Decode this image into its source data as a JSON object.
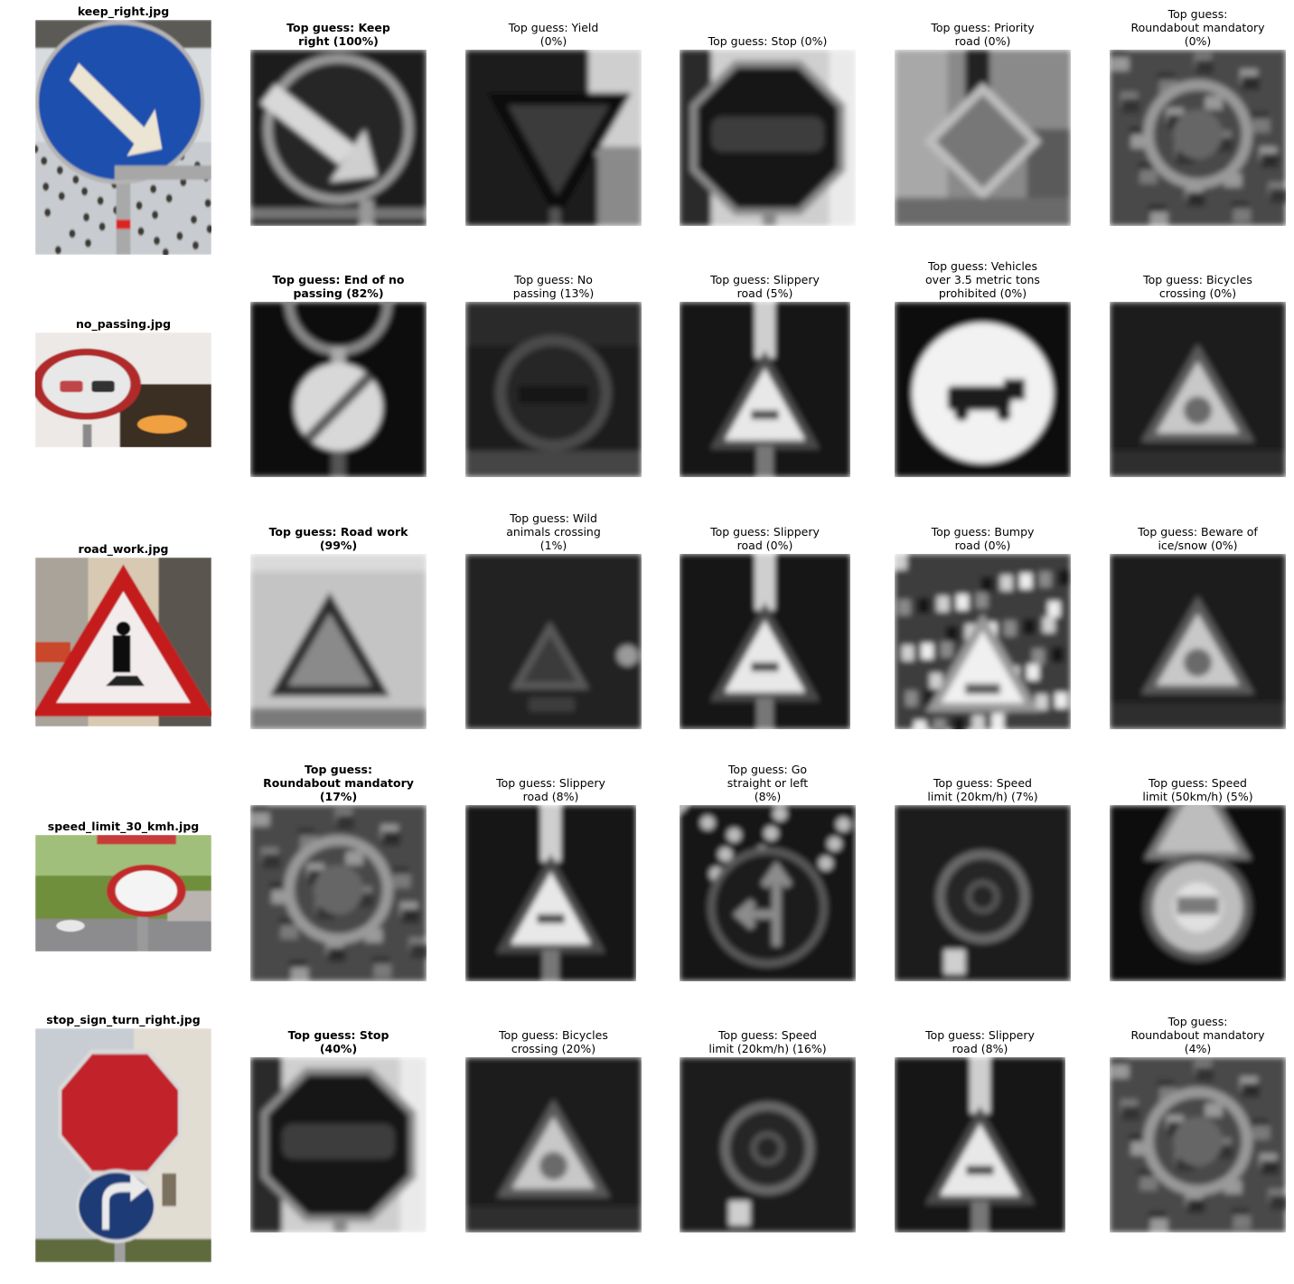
{
  "rows": [
    {
      "source": {
        "filename": "keep_right.jpg",
        "kind": "keep-right"
      },
      "guesses": [
        {
          "label": "Top guess: Keep\nright (100%)",
          "bold": true,
          "kind": "keep-right"
        },
        {
          "label": "Top guess: Yield\n(0%)",
          "bold": false,
          "kind": "yield"
        },
        {
          "label": "Top guess: Stop (0%)",
          "bold": false,
          "kind": "stop"
        },
        {
          "label": "Top guess: Priority\nroad (0%)",
          "bold": false,
          "kind": "priority"
        },
        {
          "label": "Top guess:\nRoundabout mandatory\n(0%)",
          "bold": false,
          "kind": "roundabout"
        }
      ]
    },
    {
      "source": {
        "filename": "no_passing.jpg",
        "kind": "no-passing"
      },
      "guesses": [
        {
          "label": "Top guess: End of no\npassing (82%)",
          "bold": true,
          "kind": "end-no-passing"
        },
        {
          "label": "Top guess: No\npassing (13%)",
          "bold": false,
          "kind": "no-passing"
        },
        {
          "label": "Top guess: Slippery\nroad (5%)",
          "bold": false,
          "kind": "triangle"
        },
        {
          "label": "Top guess: Vehicles\nover 3.5 metric tons\nprohibited (0%)",
          "bold": false,
          "kind": "vehicles"
        },
        {
          "label": "Top guess: Bicycles\ncrossing (0%)",
          "bold": false,
          "kind": "triangle-dark"
        }
      ]
    },
    {
      "source": {
        "filename": "road_work.jpg",
        "kind": "road-work"
      },
      "guesses": [
        {
          "label": "Top guess: Road work\n(99%)",
          "bold": true,
          "kind": "triangle-light"
        },
        {
          "label": "Top guess: Wild\nanimals crossing\n(1%)",
          "bold": false,
          "kind": "triangle-dim"
        },
        {
          "label": "Top guess: Slippery\nroad (0%)",
          "bold": false,
          "kind": "triangle"
        },
        {
          "label": "Top guess: Bumpy\nroad (0%)",
          "bold": false,
          "kind": "triangle-noisy"
        },
        {
          "label": "Top guess: Beware of\nice/snow (0%)",
          "bold": false,
          "kind": "triangle-dark"
        }
      ]
    },
    {
      "source": {
        "filename": "speed_limit_30_kmh.jpg",
        "kind": "speed-30"
      },
      "guesses": [
        {
          "label": "Top guess:\nRoundabout mandatory\n(17%)",
          "bold": true,
          "kind": "roundabout"
        },
        {
          "label": "Top guess: Slippery\nroad (8%)",
          "bold": false,
          "kind": "triangle"
        },
        {
          "label": "Top guess: Go\nstraight or left\n(8%)",
          "bold": false,
          "kind": "straight-left"
        },
        {
          "label": "Top guess: Speed\nlimit (20km/h) (7%)",
          "bold": false,
          "kind": "speed-dark"
        },
        {
          "label": "Top guess: Speed\nlimit (50km/h) (5%)",
          "bold": false,
          "kind": "speed-50"
        }
      ]
    },
    {
      "source": {
        "filename": "stop_sign_turn_right.jpg",
        "kind": "stop-turn"
      },
      "guesses": [
        {
          "label": "Top guess: Stop\n(40%)",
          "bold": true,
          "kind": "stop"
        },
        {
          "label": "Top guess: Bicycles\ncrossing (20%)",
          "bold": false,
          "kind": "triangle-dark"
        },
        {
          "label": "Top guess: Speed\nlimit (20km/h) (16%)",
          "bold": false,
          "kind": "speed-dark"
        },
        {
          "label": "Top guess: Slippery\nroad (8%)",
          "bold": false,
          "kind": "triangle"
        },
        {
          "label": "Top guess:\nRoundabout mandatory\n(4%)",
          "bold": false,
          "kind": "roundabout"
        }
      ]
    }
  ]
}
